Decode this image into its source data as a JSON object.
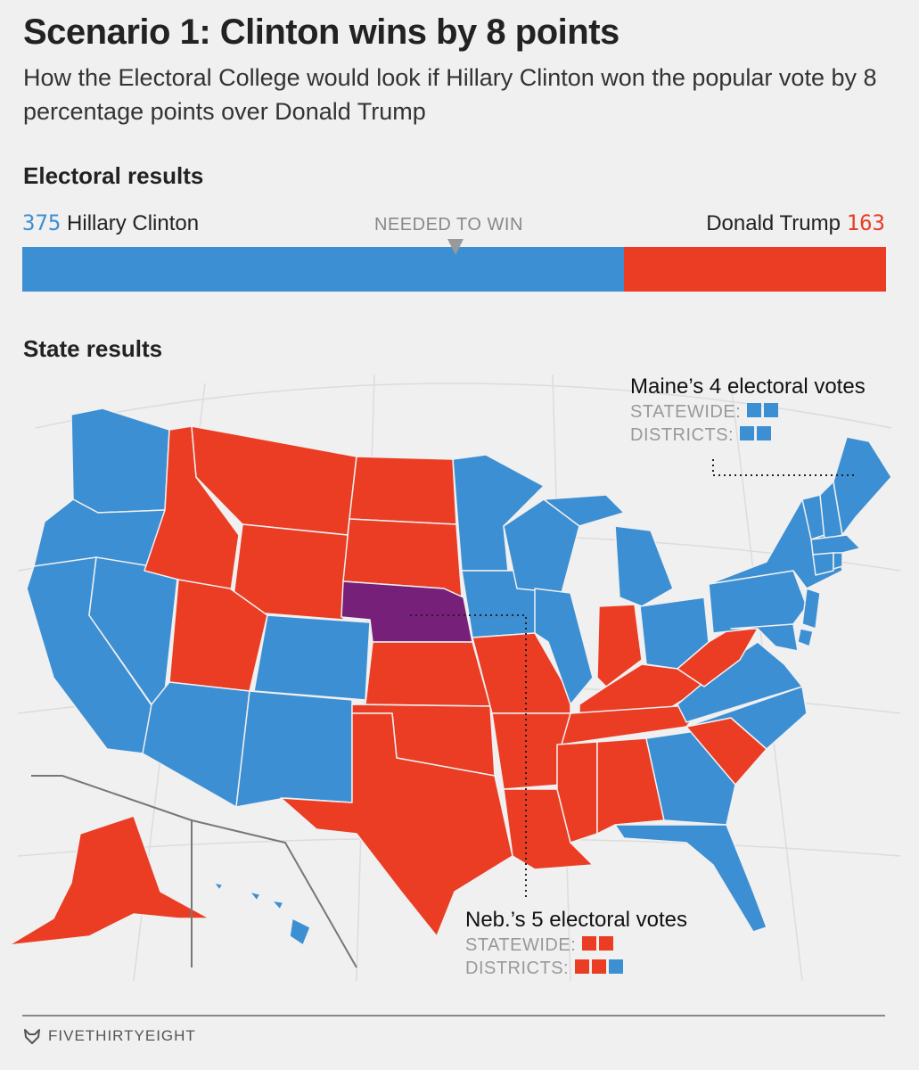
{
  "title": "Scenario 1: Clinton wins by 8 points",
  "subtitle": "How the Electoral College would look if Hillary Clinton won the popular vote by 8 percentage points over Donald Trump",
  "electoral": {
    "heading": "Electoral results",
    "needed_label": "NEEDED TO WIN",
    "clinton_name": "Hillary Clinton",
    "clinton_votes": "375",
    "trump_name": "Donald Trump",
    "trump_votes": "163"
  },
  "state_heading": "State results",
  "maine": {
    "title": "Maine’s 4 electoral votes",
    "statewide_label": "STATEWIDE:",
    "districts_label": "DISTRICTS:",
    "statewide": [
      "D",
      "D"
    ],
    "districts": [
      "D",
      "D"
    ]
  },
  "nebraska": {
    "title": "Neb.’s 5 electoral votes",
    "statewide_label": "STATEWIDE:",
    "districts_label": "DISTRICTS:",
    "statewide": [
      "R",
      "R"
    ],
    "districts": [
      "R",
      "R",
      "D"
    ]
  },
  "colors": {
    "clinton": "#3d8fd3",
    "trump": "#ea3d24",
    "split": "#77207a",
    "needed": "#999999"
  },
  "footer": "FIVETHIRTYEIGHT",
  "chart_data": {
    "type": "bar",
    "categories": [
      "Hillary Clinton",
      "Donald Trump"
    ],
    "values": [
      375,
      163
    ],
    "total": 538,
    "needed_to_win": 270,
    "state_results": {
      "clinton": [
        "WA",
        "OR",
        "CA",
        "NV",
        "CO",
        "NM",
        "AZ",
        "MN",
        "WI",
        "IA",
        "IL",
        "MI",
        "OH",
        "PA",
        "NY",
        "VT",
        "NH",
        "ME",
        "MA",
        "CT",
        "RI",
        "NJ",
        "DE",
        "MD",
        "VA",
        "NC",
        "GA",
        "FL",
        "HI",
        "DC"
      ],
      "trump": [
        "AK",
        "ID",
        "MT",
        "WY",
        "UT",
        "ND",
        "SD",
        "KS",
        "OK",
        "TX",
        "MO",
        "AR",
        "LA",
        "MS",
        "AL",
        "TN",
        "KY",
        "IN",
        "WV",
        "SC"
      ],
      "split": [
        "NE"
      ]
    }
  }
}
